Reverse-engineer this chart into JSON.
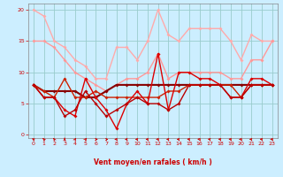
{
  "bg_color": "#cceeff",
  "grid_color": "#99cccc",
  "xlabel": "Vent moyen/en rafales ( km/h )",
  "xlabel_color": "#cc0000",
  "tick_color": "#cc0000",
  "ylim": [
    -0.5,
    21
  ],
  "xlim": [
    -0.5,
    23.5
  ],
  "yticks": [
    0,
    5,
    10,
    15,
    20
  ],
  "xticks": [
    0,
    1,
    2,
    3,
    4,
    5,
    6,
    7,
    8,
    9,
    10,
    11,
    12,
    13,
    14,
    15,
    16,
    17,
    18,
    19,
    20,
    21,
    22,
    23
  ],
  "line1_x": [
    0,
    1,
    2,
    3,
    4,
    5,
    6,
    7,
    8,
    9,
    10,
    11,
    12,
    13,
    14,
    15,
    16,
    17,
    18,
    19,
    20,
    21,
    22,
    23
  ],
  "line1_y": [
    20,
    19,
    15,
    14,
    12,
    11,
    9,
    9,
    14,
    14,
    12,
    15,
    20,
    16,
    15,
    17,
    17,
    17,
    17,
    15,
    12,
    16,
    15,
    15
  ],
  "line1_color": "#ffaaaa",
  "line1_lw": 1.0,
  "line2_x": [
    0,
    1,
    2,
    3,
    4,
    5,
    6,
    7,
    8,
    9,
    10,
    11,
    12,
    13,
    14,
    15,
    16,
    17,
    18,
    19,
    20,
    21,
    22,
    23
  ],
  "line2_y": [
    15,
    15,
    14,
    12,
    10,
    9,
    8,
    7,
    8,
    9,
    9,
    10,
    13,
    9,
    10,
    10,
    10,
    10,
    10,
    9,
    9,
    12,
    12,
    15
  ],
  "line2_color": "#ff9999",
  "line2_lw": 1.0,
  "line3_x": [
    0,
    1,
    2,
    3,
    4,
    5,
    6,
    7,
    8,
    9,
    10,
    11,
    12,
    13,
    14,
    15,
    16,
    17,
    18,
    19,
    20,
    21,
    22,
    23
  ],
  "line3_y": [
    8,
    7,
    7,
    7,
    7,
    6,
    6,
    7,
    8,
    8,
    8,
    8,
    8,
    8,
    8,
    8,
    8,
    8,
    8,
    8,
    8,
    8,
    8,
    8
  ],
  "line3_color": "#880000",
  "line3_lw": 1.5,
  "line4_x": [
    0,
    1,
    2,
    3,
    4,
    5,
    6,
    7,
    8,
    9,
    10,
    11,
    12,
    13,
    14,
    15,
    16,
    17,
    18,
    19,
    20,
    21,
    22,
    23
  ],
  "line4_y": [
    8,
    7,
    6,
    9,
    6,
    6,
    7,
    6,
    6,
    6,
    6,
    6,
    6,
    7,
    7,
    8,
    8,
    8,
    8,
    8,
    6,
    8,
    8,
    8
  ],
  "line4_color": "#cc2200",
  "line4_lw": 1.0,
  "line5_x": [
    0,
    1,
    2,
    3,
    4,
    5,
    6,
    7,
    8,
    9,
    10,
    11,
    12,
    13,
    14,
    15,
    16,
    17,
    18,
    19,
    20,
    21,
    22,
    23
  ],
  "line5_y": [
    8,
    6,
    6,
    4,
    3,
    9,
    6,
    4,
    1,
    5,
    7,
    5,
    13,
    4,
    10,
    10,
    9,
    9,
    8,
    6,
    6,
    9,
    9,
    8
  ],
  "line5_color": "#dd0000",
  "line5_lw": 1.0,
  "line6_x": [
    0,
    1,
    2,
    3,
    4,
    5,
    6,
    7,
    8,
    9,
    10,
    11,
    12,
    13,
    14,
    15,
    16,
    17,
    18,
    19,
    20,
    21,
    22,
    23
  ],
  "line6_y": [
    8,
    6,
    6,
    3,
    4,
    7,
    5,
    3,
    4,
    5,
    6,
    5,
    5,
    4,
    5,
    8,
    8,
    8,
    8,
    6,
    6,
    8,
    8,
    8
  ],
  "line6_color": "#bb0000",
  "line6_lw": 1.0,
  "marker_size": 2.0,
  "marker": "D",
  "arrows_angles": [
    225,
    210,
    200,
    180,
    160,
    150,
    90,
    90,
    270,
    280,
    270,
    270,
    270,
    270,
    270,
    260,
    260,
    260,
    260,
    260,
    270,
    270,
    260,
    270
  ],
  "arrow_color": "#cc0000"
}
